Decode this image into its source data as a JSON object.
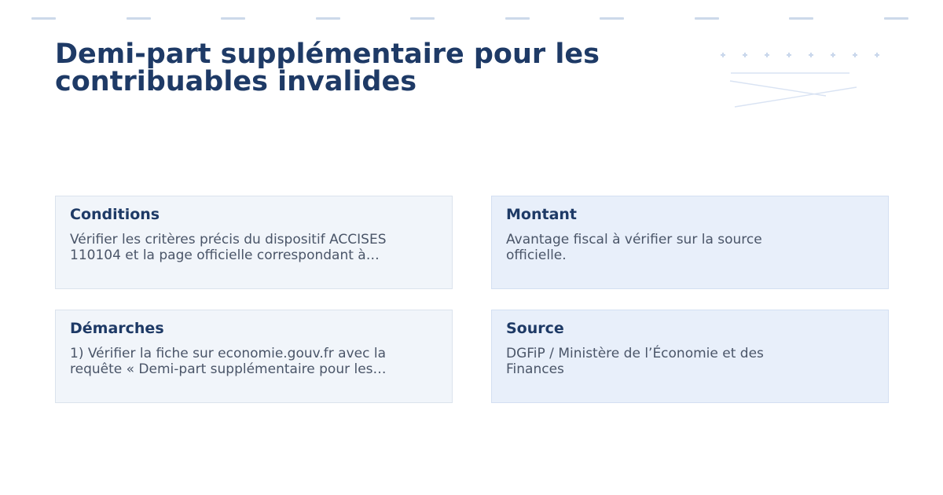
{
  "header": {
    "title": "Demi-part supplémentaire pour les\ncontribuables invalides"
  },
  "cards": [
    {
      "id": "conditions",
      "heading": "Conditions",
      "body": "Vérifier les critères précis du dispositif ACCISES\n110104 et la page officielle correspondant à…",
      "variant": "light"
    },
    {
      "id": "montant",
      "heading": "Montant",
      "body": "Avantage fiscal à vérifier sur la source\nofficielle.",
      "variant": "blue"
    },
    {
      "id": "demarches",
      "heading": "Démarches",
      "body": "1) Vérifier la fiche sur economie.gouv.fr avec la\nrequête « Demi-part supplémentaire pour les…",
      "variant": "light"
    },
    {
      "id": "source",
      "heading": "Source",
      "body": "DGFiP / Ministère de l’Économie et des\nFinances",
      "variant": "blue"
    }
  ],
  "decoration": {
    "top_dashes_count": 10,
    "corner_dots_count": 8
  },
  "colors": {
    "title_navy": "#1e3a66",
    "body_gray": "#4a5568",
    "card_light_bg": "#f1f5fa",
    "card_light_border": "#dbe3ed",
    "card_blue_bg": "#e8effa",
    "card_blue_border": "#d3dff2",
    "top_dash": "#ccd9ea",
    "decor_line": "#d9e3f3",
    "decor_dot": "#c9d7ec",
    "background": "#ffffff"
  }
}
